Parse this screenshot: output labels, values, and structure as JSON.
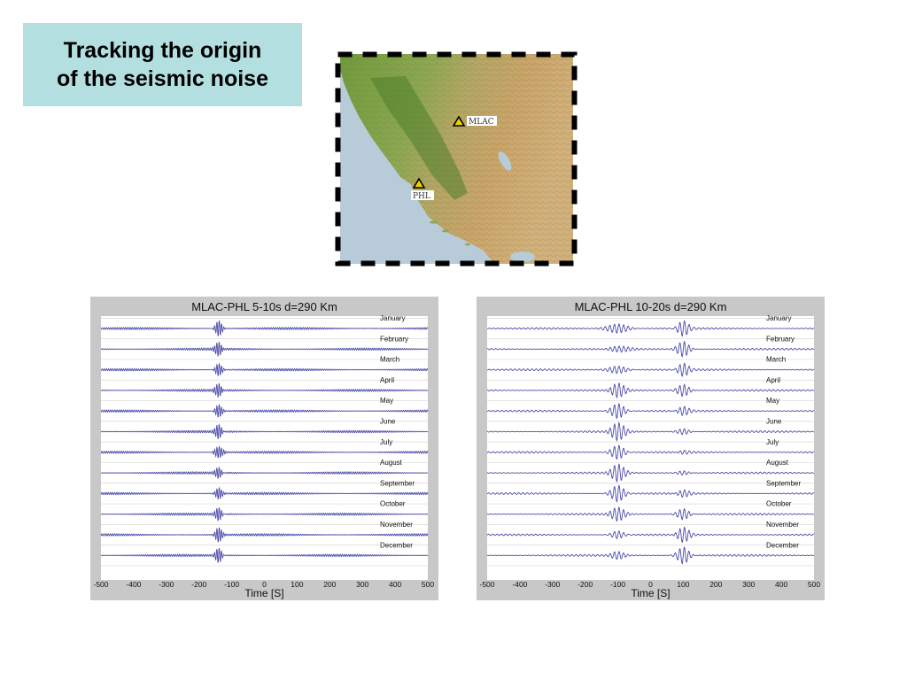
{
  "slide": {
    "title_line1": "Tracking the origin",
    "title_line2": "of the seismic noise"
  },
  "map": {
    "stations": [
      {
        "name": "MLAC",
        "icon": "triangle-icon"
      },
      {
        "name": "PHL",
        "icon": "triangle-icon"
      }
    ],
    "colors": {
      "ocean": "#b7cbd8",
      "lowland": "#7ea04a",
      "highland": "#c9a56a",
      "frame": "#000000"
    }
  },
  "chart_data": [
    {
      "type": "line",
      "title": "MLAC-PHL 5-10s d=290 Km",
      "xlabel": "Time [S]",
      "xlim": [
        -500,
        500
      ],
      "xticks": [
        -500,
        -400,
        -300,
        -200,
        -100,
        0,
        100,
        200,
        300,
        400,
        500
      ],
      "grid": true,
      "line_color": "#4a4aa8",
      "period": 7,
      "background_amplitude": 0.13,
      "series": [
        {
          "name": "January",
          "packets": [
            {
              "center": -140,
              "amp": 1.0,
              "width": 12
            }
          ]
        },
        {
          "name": "February",
          "packets": [
            {
              "center": -140,
              "amp": 0.85,
              "width": 12
            }
          ]
        },
        {
          "name": "March",
          "packets": [
            {
              "center": -140,
              "amp": 0.8,
              "width": 12
            }
          ]
        },
        {
          "name": "April",
          "packets": [
            {
              "center": -140,
              "amp": 0.85,
              "width": 12
            }
          ]
        },
        {
          "name": "May",
          "packets": [
            {
              "center": -140,
              "amp": 0.8,
              "width": 12
            }
          ]
        },
        {
          "name": "June",
          "packets": [
            {
              "center": -140,
              "amp": 0.95,
              "width": 12
            }
          ]
        },
        {
          "name": "July",
          "packets": [
            {
              "center": -140,
              "amp": 0.7,
              "width": 15
            }
          ]
        },
        {
          "name": "August",
          "packets": [
            {
              "center": -140,
              "amp": 0.75,
              "width": 12
            }
          ]
        },
        {
          "name": "September",
          "packets": [
            {
              "center": -140,
              "amp": 0.7,
              "width": 12
            }
          ]
        },
        {
          "name": "October",
          "packets": [
            {
              "center": -140,
              "amp": 0.9,
              "width": 12
            }
          ]
        },
        {
          "name": "November",
          "packets": [
            {
              "center": -140,
              "amp": 0.9,
              "width": 12
            }
          ]
        },
        {
          "name": "December",
          "packets": [
            {
              "center": -140,
              "amp": 1.0,
              "width": 12
            }
          ]
        }
      ]
    },
    {
      "type": "line",
      "title": "MLAC-PHL 10-20s d=290 Km",
      "xlabel": "Time [S]",
      "xlim": [
        -500,
        500
      ],
      "xticks": [
        -500,
        -400,
        -300,
        -200,
        -100,
        0,
        100,
        200,
        300,
        400,
        500
      ],
      "grid": true,
      "line_color": "#4a4aa8",
      "period": 14,
      "background_amplitude": 0.1,
      "series": [
        {
          "name": "January",
          "packets": [
            {
              "center": -100,
              "amp": 0.55,
              "width": 40
            },
            {
              "center": 100,
              "amp": 1.0,
              "width": 22
            }
          ]
        },
        {
          "name": "February",
          "packets": [
            {
              "center": -100,
              "amp": 0.3,
              "width": 40
            },
            {
              "center": 100,
              "amp": 0.9,
              "width": 22
            }
          ]
        },
        {
          "name": "March",
          "packets": [
            {
              "center": -100,
              "amp": 0.45,
              "width": 35
            },
            {
              "center": 100,
              "amp": 0.85,
              "width": 22
            }
          ]
        },
        {
          "name": "April",
          "packets": [
            {
              "center": -100,
              "amp": 0.8,
              "width": 25
            },
            {
              "center": 100,
              "amp": 0.7,
              "width": 22
            }
          ]
        },
        {
          "name": "May",
          "packets": [
            {
              "center": -100,
              "amp": 0.9,
              "width": 25
            },
            {
              "center": 100,
              "amp": 0.6,
              "width": 22
            }
          ]
        },
        {
          "name": "June",
          "packets": [
            {
              "center": -100,
              "amp": 1.0,
              "width": 25
            },
            {
              "center": 100,
              "amp": 0.35,
              "width": 22
            }
          ]
        },
        {
          "name": "July",
          "packets": [
            {
              "center": -100,
              "amp": 0.85,
              "width": 25
            },
            {
              "center": 100,
              "amp": 0.25,
              "width": 22
            }
          ]
        },
        {
          "name": "August",
          "packets": [
            {
              "center": -100,
              "amp": 0.95,
              "width": 25
            },
            {
              "center": 100,
              "amp": 0.25,
              "width": 22
            }
          ]
        },
        {
          "name": "September",
          "packets": [
            {
              "center": -100,
              "amp": 1.0,
              "width": 25
            },
            {
              "center": 100,
              "amp": 0.45,
              "width": 22
            }
          ]
        },
        {
          "name": "October",
          "packets": [
            {
              "center": -100,
              "amp": 0.75,
              "width": 25
            },
            {
              "center": 100,
              "amp": 0.65,
              "width": 22
            }
          ]
        },
        {
          "name": "November",
          "packets": [
            {
              "center": -100,
              "amp": 0.5,
              "width": 25
            },
            {
              "center": 100,
              "amp": 0.9,
              "width": 22
            }
          ]
        },
        {
          "name": "December",
          "packets": [
            {
              "center": -100,
              "amp": 0.4,
              "width": 25
            },
            {
              "center": 100,
              "amp": 1.0,
              "width": 22
            }
          ]
        }
      ]
    }
  ]
}
